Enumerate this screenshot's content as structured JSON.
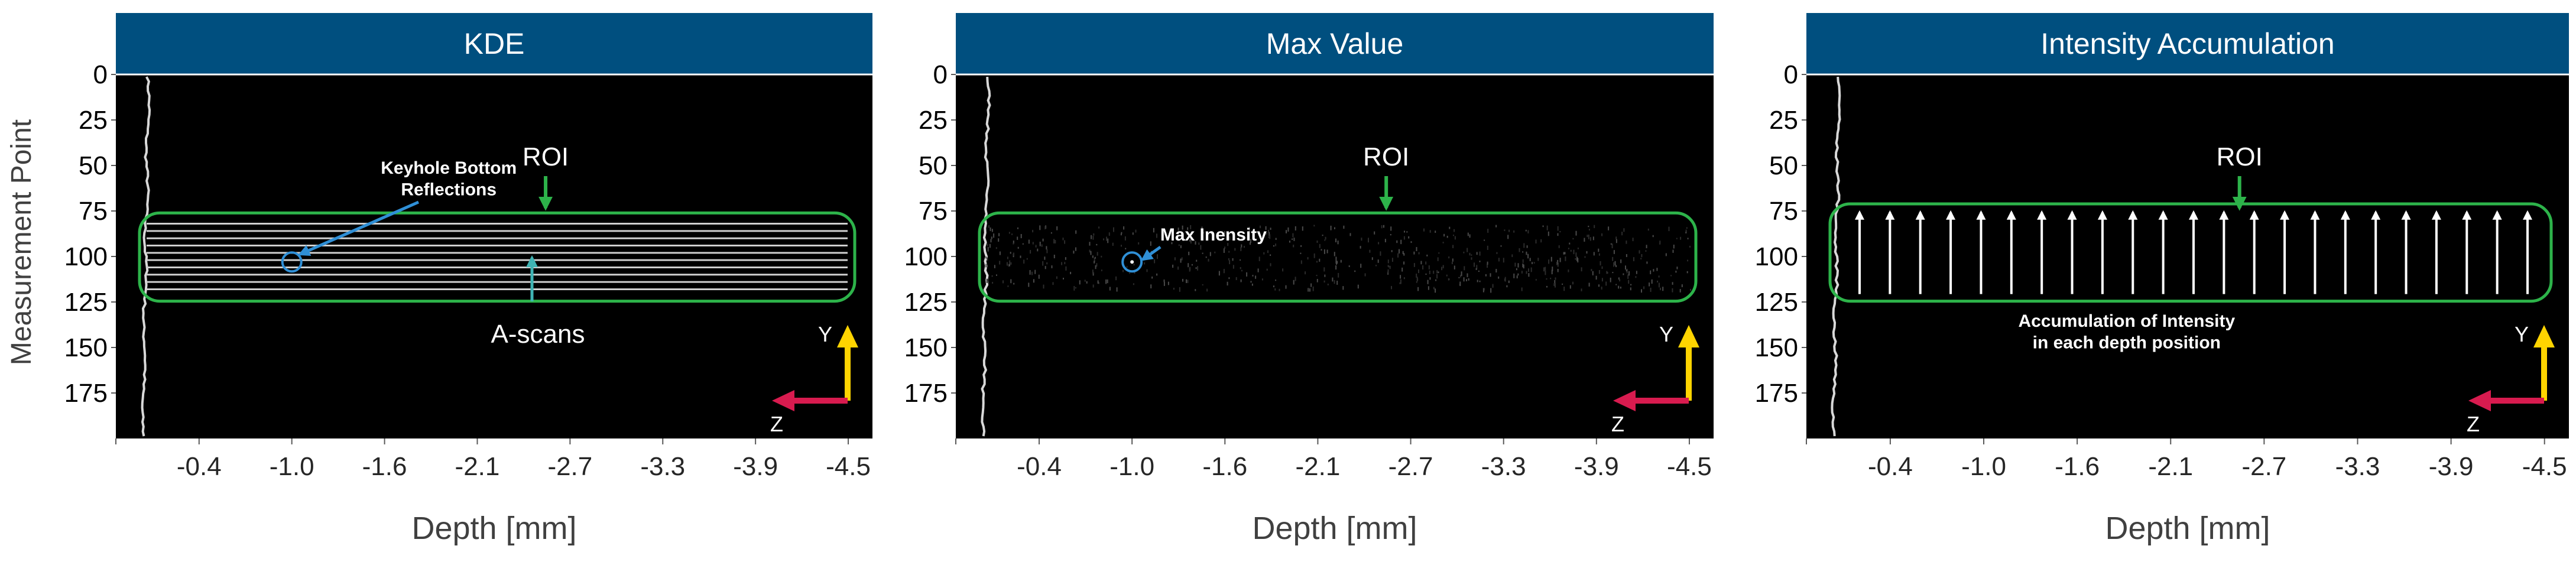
{
  "figure": {
    "ylabel": "Measurement Point",
    "xlabel": "Depth [mm]"
  },
  "chart_data": [
    {
      "type": "heatmap",
      "title": "KDE",
      "xlabel": "Depth [mm]",
      "ylabel": "Measurement Point",
      "x_ticks": [
        "-0.4",
        "-1.0",
        "-1.6",
        "-2.1",
        "-2.7",
        "-3.3",
        "-3.9",
        "-4.5"
      ],
      "y_ticks": [
        0,
        25,
        50,
        75,
        100,
        125,
        150,
        175
      ],
      "ylim": [
        0,
        200
      ],
      "roi": [
        80,
        120
      ],
      "ascan_count": 10,
      "annotations": {
        "roi": "ROI",
        "feature": "Keyhole Bottom\nReflections",
        "feature_point": {
          "depth_tick": "-1.0",
          "measurement_point": 103
        },
        "ascans": "A-scans"
      },
      "axes_label": {
        "y": "Y",
        "z": "Z"
      }
    },
    {
      "type": "heatmap",
      "title": "Max Value",
      "xlabel": "Depth [mm]",
      "x_ticks": [
        "-0.4",
        "-1.0",
        "-1.6",
        "-2.1",
        "-2.7",
        "-3.3",
        "-3.9",
        "-4.5"
      ],
      "y_ticks": [
        0,
        25,
        50,
        75,
        100,
        125,
        150,
        175
      ],
      "ylim": [
        0,
        200
      ],
      "roi": [
        80,
        120
      ],
      "annotations": {
        "roi": "ROI",
        "feature": "Max Inensity",
        "feature_point": {
          "depth_tick": "-1.0",
          "measurement_point": 103
        }
      },
      "axes_label": {
        "y": "Y",
        "z": "Z"
      }
    },
    {
      "type": "heatmap",
      "title": "Intensity Accumulation",
      "xlabel": "Depth [mm]",
      "x_ticks": [
        "-0.4",
        "-1.0",
        "-1.6",
        "-2.1",
        "-2.7",
        "-3.3",
        "-3.9",
        "-4.5"
      ],
      "y_ticks": [
        0,
        25,
        50,
        75,
        100,
        125,
        150,
        175
      ],
      "ylim": [
        0,
        200
      ],
      "roi": [
        75,
        120
      ],
      "arrow_count": 23,
      "annotations": {
        "roi": "ROI",
        "accumulation": "Accumulation of Intensity\nin each depth position"
      },
      "axes_label": {
        "y": "Y",
        "z": "Z"
      }
    }
  ],
  "colors": {
    "title_bar": "#004f7f",
    "plot_bg": "#000000",
    "roi_box": "#2db34a",
    "roi_arrow": "#2db34a",
    "highlight_circle": "#2f8fd6",
    "pointer_arrow": "#2f8fd6",
    "ascan_arrow": "#3fb4b4",
    "axis_y": "#ffd400",
    "axis_z": "#d81b4f"
  }
}
